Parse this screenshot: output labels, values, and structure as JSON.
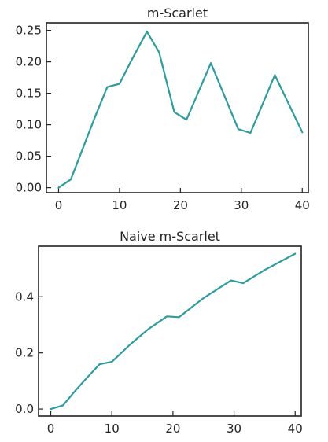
{
  "chart_data": [
    {
      "type": "line",
      "title": "m-Scarlet",
      "xlabel": "",
      "ylabel": "",
      "xlim": [
        -2,
        41
      ],
      "ylim": [
        -0.008,
        0.262
      ],
      "xticks": [
        0,
        10,
        20,
        30,
        40
      ],
      "xtick_labels": [
        "0",
        "10",
        "20",
        "30",
        "40"
      ],
      "yticks": [
        0.0,
        0.05,
        0.1,
        0.15,
        0.2,
        0.25
      ],
      "ytick_labels": [
        "0.00",
        "0.05",
        "0.10",
        "0.15",
        "0.20",
        "0.25"
      ],
      "grid": false,
      "series": [
        {
          "color": "#2a9d9f",
          "x": [
            0,
            2,
            4,
            6,
            8,
            10,
            12,
            14.5,
            16.5,
            19,
            21,
            25,
            29.5,
            31.5,
            35.5,
            40
          ],
          "y": [
            0.0,
            0.013,
            0.063,
            0.113,
            0.16,
            0.165,
            0.203,
            0.248,
            0.215,
            0.12,
            0.108,
            0.198,
            0.093,
            0.087,
            0.179,
            0.088
          ]
        }
      ]
    },
    {
      "type": "line",
      "title": "Naive m-Scarlet",
      "xlabel": "",
      "ylabel": "",
      "xlim": [
        -2,
        41
      ],
      "ylim": [
        -0.025,
        0.58
      ],
      "xticks": [
        0,
        10,
        20,
        30,
        40
      ],
      "xtick_labels": [
        "0",
        "10",
        "20",
        "30",
        "40"
      ],
      "yticks": [
        0.0,
        0.2,
        0.4
      ],
      "ytick_labels": [
        "0.0",
        "0.2",
        "0.4"
      ],
      "grid": false,
      "series": [
        {
          "color": "#2a9d9f",
          "x": [
            0,
            2,
            4,
            6,
            8,
            10,
            13,
            16,
            19,
            21,
            25,
            29.5,
            31.5,
            35,
            40
          ],
          "y": [
            0.0,
            0.013,
            0.065,
            0.113,
            0.16,
            0.168,
            0.23,
            0.285,
            0.33,
            0.327,
            0.395,
            0.458,
            0.448,
            0.495,
            0.553
          ]
        }
      ]
    }
  ]
}
